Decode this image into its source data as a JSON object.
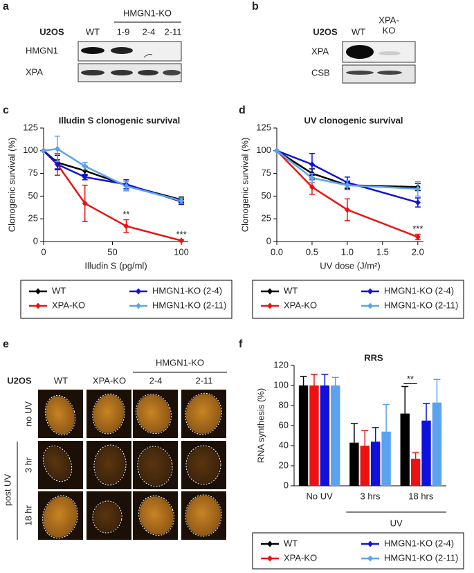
{
  "panels": {
    "a": {
      "letter": "a",
      "group": "HMGN1-KO",
      "cell_line": "U2OS",
      "lanes": [
        "WT",
        "1-9",
        "2-4",
        "2-11"
      ],
      "rows": [
        "HMGN1",
        "XPA"
      ]
    },
    "b": {
      "letter": "b",
      "cell_line": "U2OS",
      "lanes": [
        [
          "WT"
        ],
        [
          "XPA-",
          "KO"
        ]
      ],
      "rows": [
        "XPA",
        "CSB"
      ]
    },
    "e": {
      "letter": "e",
      "group": "HMGN1-KO",
      "cell_line": "U2OS",
      "columns": [
        "WT",
        "XPA-KO",
        "2-4",
        "2-11"
      ],
      "rows": [
        "no UV",
        "3 hr",
        "18 hr"
      ],
      "row_group": "post UV"
    }
  },
  "chart_data": [
    {
      "type": "line",
      "panel": "c",
      "title": "Illudin S clonogenic survival",
      "x_label": "Illudin S (pg/ml)",
      "y_label": "Clonogenic survival  (%)",
      "x": [
        0,
        10,
        30,
        60,
        100
      ],
      "xlim": [
        0,
        105
      ],
      "xticks": [
        0,
        50,
        100
      ],
      "ylim": [
        0,
        125
      ],
      "yticks": [
        0,
        25,
        50,
        75,
        100,
        125
      ],
      "series": [
        {
          "name": "WT",
          "color": "#000000",
          "values": [
            100,
            87,
            78,
            62,
            46
          ],
          "errors": [
            null,
            8,
            5,
            6,
            3
          ]
        },
        {
          "name": "XPA-KO",
          "color": "#ee1111",
          "values": [
            100,
            85,
            42,
            17,
            1
          ],
          "errors": [
            null,
            12,
            20,
            7,
            1
          ]
        },
        {
          "name": "HMGN1-KO (2-4)",
          "color": "#1111dd",
          "values": [
            100,
            85,
            71,
            63,
            44
          ],
          "errors": [
            null,
            5,
            3,
            5,
            3
          ]
        },
        {
          "name": "HMGN1-KO (2-11)",
          "color": "#5ba3ee",
          "values": [
            100,
            102,
            83,
            61,
            45
          ],
          "errors": [
            null,
            14,
            4,
            5,
            3
          ]
        }
      ],
      "annotations": [
        {
          "text": "**",
          "x": 60
        },
        {
          "text": "***",
          "x": 100
        }
      ]
    },
    {
      "type": "line",
      "panel": "d",
      "title": "UV clonogenic survival",
      "x_label": "UV dose (J/m²)",
      "y_label": "Clonogenic survival  (%)",
      "x": [
        0,
        0.5,
        1,
        2
      ],
      "xlim": [
        0,
        2.08
      ],
      "xticks": [
        {
          "value": 0,
          "label": "0.0"
        },
        0.5,
        {
          "value": 1,
          "label": "1.0"
        },
        1.5,
        {
          "value": 2,
          "label": "2.0"
        }
      ],
      "ylim": [
        0,
        125
      ],
      "yticks": [
        0,
        25,
        50,
        75,
        100,
        125
      ],
      "series": [
        {
          "name": "WT",
          "color": "#000000",
          "values": [
            100,
            75,
            62,
            60
          ],
          "errors": [
            null,
            5,
            4,
            4
          ]
        },
        {
          "name": "XPA-KO",
          "color": "#ee1111",
          "values": [
            100,
            60,
            35,
            5
          ],
          "errors": [
            null,
            8,
            12,
            3
          ]
        },
        {
          "name": "HMGN1-KO (2-4)",
          "color": "#1111dd",
          "values": [
            100,
            85,
            65,
            43
          ],
          "errors": [
            null,
            12,
            6,
            5
          ]
        },
        {
          "name": "HMGN1-KO (2-11)",
          "color": "#5ba3ee",
          "values": [
            100,
            70,
            62,
            58
          ],
          "errors": [
            null,
            5,
            5,
            8
          ]
        }
      ],
      "annotations": [
        {
          "text": "***",
          "x": 2
        }
      ]
    },
    {
      "type": "bar",
      "panel": "f",
      "title": "RRS",
      "y_label": "RNA synthesis (%)",
      "categories": [
        "No UV",
        "3 hrs",
        "18 hrs"
      ],
      "ylim": [
        0,
        120
      ],
      "yticks": [
        0,
        20,
        40,
        60,
        80,
        100,
        120
      ],
      "series": [
        {
          "name": "WT",
          "color": "#000000",
          "values": [
            100,
            43,
            72
          ],
          "errors": [
            9,
            19,
            27
          ]
        },
        {
          "name": "XPA-KO",
          "color": "#ee1111",
          "values": [
            100,
            40,
            27
          ],
          "errors": [
            11,
            15,
            6
          ]
        },
        {
          "name": "HMGN1-KO (2-4)",
          "color": "#1111dd",
          "values": [
            100,
            44,
            65
          ],
          "errors": [
            11,
            14,
            17
          ]
        },
        {
          "name": "HMGN1-KO (2-11)",
          "color": "#5ba3ee",
          "values": [
            100,
            54,
            83
          ],
          "errors": [
            8,
            27,
            23
          ]
        }
      ],
      "group": {
        "label": "UV",
        "categories": [
          1,
          2
        ]
      },
      "annotations": [
        {
          "text": "**",
          "category": 2
        }
      ]
    }
  ]
}
